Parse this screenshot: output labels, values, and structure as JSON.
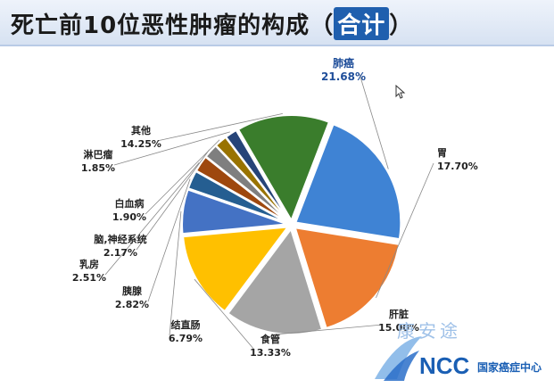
{
  "header": {
    "title": "死亡前10位恶性肿瘤的构成",
    "title_paren_open": "（",
    "title_tag": "合计",
    "title_paren_close": "）"
  },
  "chart_data": {
    "type": "pie",
    "start_angle_deg": -69,
    "slices": [
      {
        "label": "肺癌",
        "value": 21.68,
        "display": "21.68%",
        "color": "#3f83d4"
      },
      {
        "label": "胃",
        "value": 17.7,
        "display": "17.70%",
        "color": "#ed7d31"
      },
      {
        "label": "肝脏",
        "value": 15.0,
        "display": "15.00%",
        "color": "#a5a5a5"
      },
      {
        "label": "食管",
        "value": 13.33,
        "display": "13.33%",
        "color": "#ffc000"
      },
      {
        "label": "结直肠",
        "value": 6.79,
        "display": "6.79%",
        "color": "#4472c4"
      },
      {
        "label": "胰腺",
        "value": 2.82,
        "display": "2.82%",
        "color": "#255e91"
      },
      {
        "label": "乳房",
        "value": 2.51,
        "display": "2.51%",
        "color": "#9e480e"
      },
      {
        "label": "脑,神经系统",
        "value": 2.17,
        "display": "2.17%",
        "color": "#7f7f7f"
      },
      {
        "label": "白血病",
        "value": 1.9,
        "display": "1.90%",
        "color": "#997300"
      },
      {
        "label": "淋巴瘤",
        "value": 1.85,
        "display": "1.85%",
        "color": "#264478"
      },
      {
        "label": "其他",
        "value": 14.25,
        "display": "14.25%",
        "color": "#3a7d2c"
      }
    ]
  },
  "watermark": {
    "name_cn": "康安途",
    "logo": "NCC",
    "logo_cn": "国家癌症中心"
  }
}
